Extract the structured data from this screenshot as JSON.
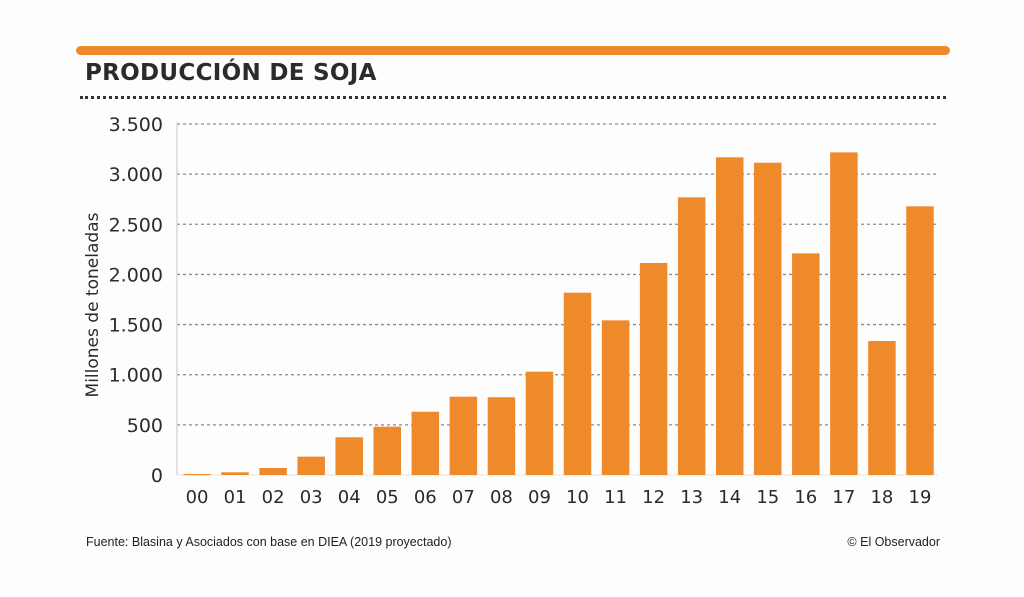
{
  "header": {
    "title": "PRODUCCIÓN DE SOJA",
    "accent_color": "#ef8a2a"
  },
  "footer": {
    "source": "Fuente: Blasina y Asociados con base en DIEA (2019 proyectado)",
    "credit": "© El Observador"
  },
  "chart_data": {
    "type": "bar",
    "title": "PRODUCCIÓN DE SOJA",
    "xlabel": "",
    "ylabel": "Millones de toneladas",
    "ylim": [
      0,
      3500
    ],
    "yticks": [
      0,
      500,
      1000,
      1500,
      2000,
      2500,
      3000,
      3500
    ],
    "ytick_labels": [
      "0",
      "500",
      "1.000",
      "1.500",
      "2.000",
      "2.500",
      "3.000",
      "3.500"
    ],
    "grid": true,
    "bar_color": "#ef8a2a",
    "categories": [
      "00",
      "01",
      "02",
      "03",
      "04",
      "05",
      "06",
      "07",
      "08",
      "09",
      "10",
      "11",
      "12",
      "13",
      "14",
      "15",
      "16",
      "17",
      "18",
      "19"
    ],
    "values": [
      10,
      27,
      70,
      183,
      376,
      482,
      631,
      781,
      775,
      1030,
      1818,
      1542,
      2114,
      2769,
      3168,
      3114,
      2210,
      3217,
      1336,
      2679
    ]
  }
}
